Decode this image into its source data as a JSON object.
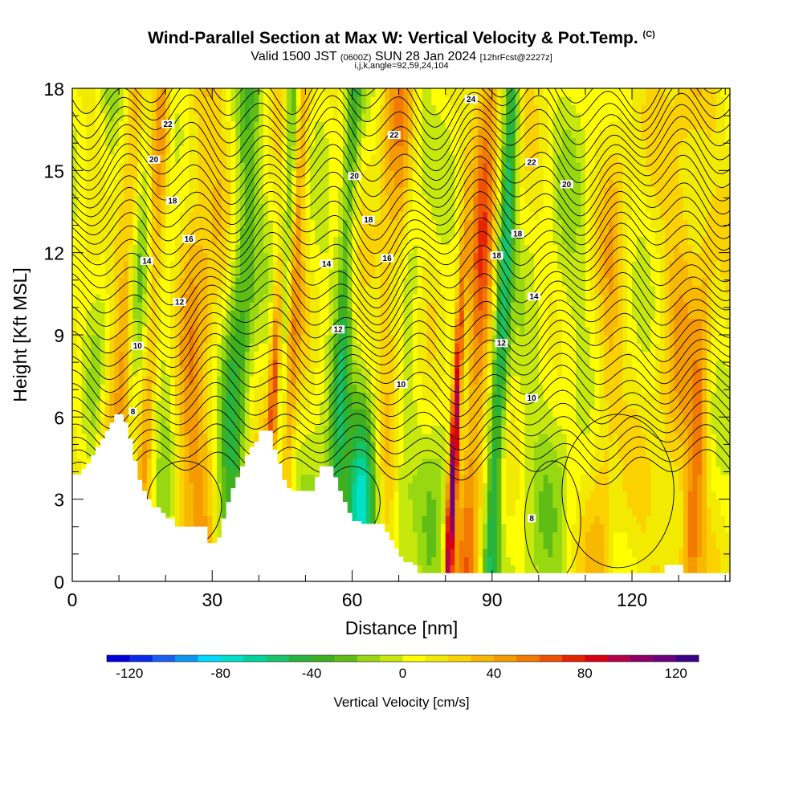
{
  "header": {
    "title": "Wind-Parallel Section at Max W: Vertical Velocity & Pot.Temp.",
    "copyright": "(C)",
    "valid_prefix": "Valid 1500 JST",
    "valid_utc": "(0600Z)",
    "valid_date": "SUN 28 Jan 2024",
    "forecast": "[12hrFcst@2227z]",
    "params": "i,j,k,angle=92,59,24,104"
  },
  "chart_data": {
    "type": "heatmap",
    "xlabel": "Distance [nm]",
    "ylabel": "Height [Kft MSL]",
    "xlim": [
      0,
      141
    ],
    "ylim": [
      0,
      18
    ],
    "x_ticks": [
      "0",
      "30",
      "60",
      "90",
      "120"
    ],
    "y_ticks": [
      "0",
      "3",
      "6",
      "9",
      "12",
      "15",
      "18"
    ],
    "colorbar": {
      "label": "Vertical Velocity [cm/s]",
      "tick_labels": [
        "-120",
        "-80",
        "-40",
        "0",
        "40",
        "80",
        "120"
      ],
      "range": [
        -130,
        130
      ],
      "colors": [
        "#0000dd",
        "#0a2aee",
        "#1b5ff0",
        "#0d96f2",
        "#00d8ff",
        "#00e0c8",
        "#00d49a",
        "#17c46a",
        "#27b43e",
        "#3fae1f",
        "#5fbd16",
        "#98d810",
        "#c6e80c",
        "#ffff00",
        "#f2ea00",
        "#fbd200",
        "#f9b800",
        "#f59b00",
        "#f27a00",
        "#ee5200",
        "#e62400",
        "#d80010",
        "#b6004a",
        "#8e0068",
        "#6c0080",
        "#3c0088"
      ]
    },
    "theta_contour_labels": [
      {
        "value": "22",
        "x": 20.5,
        "z": 16.7
      },
      {
        "value": "20",
        "x": 17.5,
        "z": 15.4
      },
      {
        "value": "18",
        "x": 21.5,
        "z": 13.9
      },
      {
        "value": "16",
        "x": 25,
        "z": 12.5
      },
      {
        "value": "14",
        "x": 16,
        "z": 11.7
      },
      {
        "value": "12",
        "x": 23,
        "z": 10.2
      },
      {
        "value": "10",
        "x": 14,
        "z": 8.6
      },
      {
        "value": "8",
        "x": 13,
        "z": 6.2
      },
      {
        "value": "22",
        "x": 69,
        "z": 16.3
      },
      {
        "value": "20",
        "x": 60.5,
        "z": 14.8
      },
      {
        "value": "18",
        "x": 63.5,
        "z": 13.2
      },
      {
        "value": "16",
        "x": 67.5,
        "z": 11.8
      },
      {
        "value": "14",
        "x": 54.5,
        "z": 11.6
      },
      {
        "value": "12",
        "x": 57,
        "z": 9.2
      },
      {
        "value": "24",
        "x": 85.5,
        "z": 17.6
      },
      {
        "value": "22",
        "x": 98.5,
        "z": 15.3
      },
      {
        "value": "20",
        "x": 106,
        "z": 14.5
      },
      {
        "value": "18",
        "x": 95.5,
        "z": 12.7
      },
      {
        "value": "18",
        "x": 91,
        "z": 11.9
      },
      {
        "value": "14",
        "x": 99,
        "z": 10.4
      },
      {
        "value": "12",
        "x": 92,
        "z": 8.7
      },
      {
        "value": "10",
        "x": 70.5,
        "z": 7.2
      },
      {
        "value": "10",
        "x": 98.5,
        "z": 6.7
      },
      {
        "value": "8",
        "x": 98.5,
        "z": 2.3
      }
    ]
  }
}
